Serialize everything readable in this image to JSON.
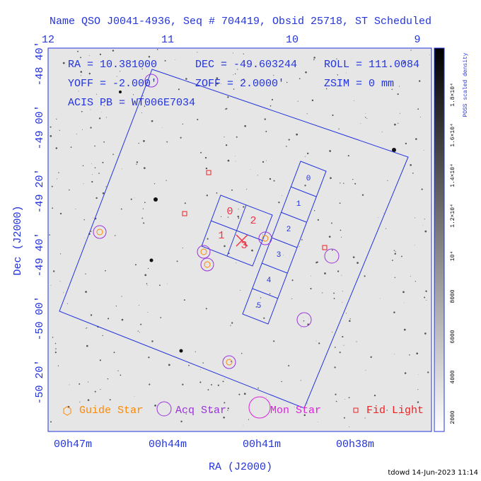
{
  "header": {
    "title": "Name QSO J0041-4936, Seq # 704419, Obsid 25718, ST Scheduled"
  },
  "info": [
    "RA = 10.381000",
    "DEC = -49.603244",
    "ROLL = 111.0084",
    "YOFF =  -2.000'",
    "ZOFF =  2.0000'",
    "ZSIM = 0 mm",
    "ACIS PB = WT006E7034"
  ],
  "top_axis": [
    "12",
    "11",
    "10",
    "9"
  ],
  "bottom_axis": {
    "label": "RA (J2000)",
    "ticks": [
      "00h47m",
      "00h44m",
      "00h41m",
      "00h38m"
    ]
  },
  "left_axis": {
    "label": "Dec (J2000)",
    "ticks": [
      "-48 40'",
      "-49 00'",
      "-49 20'",
      "-49 40'",
      "-50 00'",
      "-50 20'"
    ]
  },
  "colorbar": {
    "label": "POSS scaled density",
    "ticks": [
      "2000",
      "4000",
      "6000",
      "8000",
      "10⁴",
      "1.2×10⁴",
      "1.4×10⁴",
      "1.6×10⁴",
      "1.8×10⁴"
    ]
  },
  "chips": {
    "i": [
      "0",
      "2",
      "1",
      "3"
    ],
    "s": [
      "0",
      "1",
      "2",
      "3",
      "4",
      "5"
    ]
  },
  "legend": [
    "Guide Star",
    "Acq Star",
    "Mon Star",
    "Fid Light"
  ],
  "footer": "tdowd 14-Jun-2023 11:14"
}
